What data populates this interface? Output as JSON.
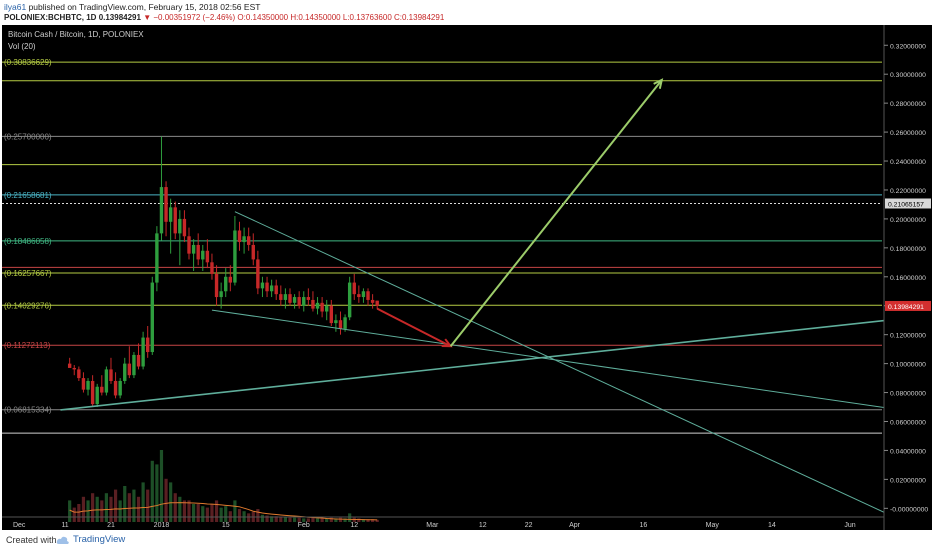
{
  "header": {
    "user": "ilya61",
    "published": " published on TradingView.com, February 15, 2018 02:56 EST",
    "symbol": "POLONIEX:BCHBTC, 1D",
    "price": "0.13984291",
    "change_arrow": "▼",
    "change": "−0.00351972 (−2.46%)",
    "ohlc": "O:0.14350000 H:0.14350000 L:0.13763600 C:0.13984291"
  },
  "footer": {
    "created": "Created with",
    "brand": "TradingView"
  },
  "colors": {
    "up": "#2e9e3e",
    "down": "#c62828",
    "bg": "#000000",
    "fib_yellow_green": "#b5cc44",
    "fib_gray": "#8a8a8a",
    "fib_teal": "#4ab3c4",
    "fib_green": "#40b884",
    "fib_red": "#c64545",
    "arrow_green": "#9ccc6a",
    "arrow_red": "#c62828",
    "trendline": "#5fae9b"
  },
  "chart_data": {
    "type": "candlestick",
    "title": "Bitcoin Cash / Bitcoin, 1D, POLONIEX",
    "indicator": "Vol (20)",
    "y_range": [
      -0.006,
      0.334
    ],
    "y_ticks": [
      "0.32000000",
      "0.30000000",
      "0.28000000",
      "0.26000000",
      "0.24000000",
      "0.22000000",
      "0.20000000",
      "0.18000000",
      "0.16000000",
      "0.14000000",
      "0.12000000",
      "0.10000000",
      "0.08000000",
      "0.06000000",
      "0.04000000",
      "0.02000000",
      "-0.00000000"
    ],
    "x_ticks": [
      "Dec",
      "11",
      "21",
      "2018",
      "15",
      "Feb",
      "12",
      "Mar",
      "12",
      "22",
      "Apr",
      "16",
      "May",
      "14",
      "Jun"
    ],
    "x_tick_days": [
      0,
      10,
      20,
      31,
      45,
      62,
      73,
      90,
      101,
      111,
      121,
      136,
      151,
      164,
      181
    ],
    "last_price_label": "0.13984291",
    "marker_label": "0.21065157",
    "fib_levels": [
      {
        "label": "0.30836629",
        "value": 0.30836629,
        "color": "#b5cc44"
      },
      {
        "label": "",
        "value": 0.2955,
        "color": "#b5cc44"
      },
      {
        "label": "0.25700000",
        "value": 0.257,
        "color": "#8a8a8a"
      },
      {
        "label": "",
        "value": 0.2375,
        "color": "#b5cc44"
      },
      {
        "label": "0.21658681",
        "value": 0.21658681,
        "color": "#4ab3c4"
      },
      {
        "label": "0.18486058",
        "value": 0.18486058,
        "color": "#40b884"
      },
      {
        "label": "",
        "value": 0.1665,
        "color": "#c64545"
      },
      {
        "label": "0.16257667",
        "value": 0.16257667,
        "color": "#b5cc44"
      },
      {
        "label": "0.14029276",
        "value": 0.14029276,
        "color": "#b5cc44"
      },
      {
        "label": "0.11272113",
        "value": 0.11272113,
        "color": "#c64545"
      },
      {
        "label": "0.06815334",
        "value": 0.06815334,
        "color": "#8a8a8a"
      },
      {
        "label": "",
        "value": 0.052,
        "color": "#cfcfcf"
      }
    ],
    "candles": [
      [
        0,
        0.1,
        0.104,
        0.098,
        0.097
      ],
      [
        1,
        0.097,
        0.099,
        0.092,
        0.096
      ],
      [
        2,
        0.096,
        0.098,
        0.088,
        0.09
      ],
      [
        3,
        0.09,
        0.094,
        0.08,
        0.082
      ],
      [
        4,
        0.082,
        0.09,
        0.078,
        0.088
      ],
      [
        5,
        0.088,
        0.092,
        0.07,
        0.072
      ],
      [
        6,
        0.072,
        0.086,
        0.07,
        0.084
      ],
      [
        7,
        0.084,
        0.092,
        0.078,
        0.08
      ],
      [
        8,
        0.08,
        0.098,
        0.078,
        0.096
      ],
      [
        9,
        0.096,
        0.104,
        0.086,
        0.088
      ],
      [
        10,
        0.088,
        0.094,
        0.076,
        0.078
      ],
      [
        11,
        0.078,
        0.09,
        0.076,
        0.088
      ],
      [
        12,
        0.088,
        0.104,
        0.086,
        0.1
      ],
      [
        13,
        0.1,
        0.112,
        0.09,
        0.092
      ],
      [
        14,
        0.092,
        0.108,
        0.09,
        0.106
      ],
      [
        15,
        0.106,
        0.114,
        0.096,
        0.098
      ],
      [
        16,
        0.098,
        0.122,
        0.096,
        0.118
      ],
      [
        17,
        0.118,
        0.126,
        0.104,
        0.108
      ],
      [
        18,
        0.108,
        0.16,
        0.106,
        0.156
      ],
      [
        19,
        0.156,
        0.195,
        0.15,
        0.19
      ],
      [
        20,
        0.19,
        0.257,
        0.185,
        0.222
      ],
      [
        21,
        0.222,
        0.226,
        0.188,
        0.198
      ],
      [
        22,
        0.198,
        0.214,
        0.176,
        0.208
      ],
      [
        23,
        0.208,
        0.212,
        0.186,
        0.19
      ],
      [
        24,
        0.19,
        0.206,
        0.168,
        0.2
      ],
      [
        25,
        0.2,
        0.206,
        0.184,
        0.188
      ],
      [
        26,
        0.188,
        0.194,
        0.172,
        0.176
      ],
      [
        27,
        0.176,
        0.186,
        0.164,
        0.182
      ],
      [
        28,
        0.182,
        0.19,
        0.168,
        0.172
      ],
      [
        29,
        0.172,
        0.182,
        0.164,
        0.178
      ],
      [
        30,
        0.178,
        0.186,
        0.166,
        0.17
      ],
      [
        31,
        0.17,
        0.176,
        0.158,
        0.162
      ],
      [
        32,
        0.162,
        0.168,
        0.14,
        0.146
      ],
      [
        33,
        0.146,
        0.156,
        0.138,
        0.15
      ],
      [
        34,
        0.15,
        0.166,
        0.146,
        0.16
      ],
      [
        35,
        0.16,
        0.168,
        0.15,
        0.156
      ],
      [
        36,
        0.156,
        0.202,
        0.154,
        0.192
      ],
      [
        37,
        0.192,
        0.198,
        0.178,
        0.184
      ],
      [
        38,
        0.184,
        0.194,
        0.176,
        0.188
      ],
      [
        39,
        0.188,
        0.194,
        0.178,
        0.182
      ],
      [
        40,
        0.182,
        0.19,
        0.168,
        0.172
      ],
      [
        41,
        0.172,
        0.178,
        0.148,
        0.152
      ],
      [
        42,
        0.152,
        0.16,
        0.146,
        0.156
      ],
      [
        43,
        0.156,
        0.16,
        0.146,
        0.15
      ],
      [
        44,
        0.15,
        0.158,
        0.146,
        0.154
      ],
      [
        45,
        0.154,
        0.158,
        0.144,
        0.148
      ],
      [
        46,
        0.148,
        0.154,
        0.14,
        0.144
      ],
      [
        47,
        0.144,
        0.152,
        0.138,
        0.148
      ],
      [
        48,
        0.148,
        0.152,
        0.14,
        0.142
      ],
      [
        49,
        0.142,
        0.148,
        0.138,
        0.146
      ],
      [
        50,
        0.146,
        0.15,
        0.138,
        0.14
      ],
      [
        51,
        0.14,
        0.15,
        0.136,
        0.146
      ],
      [
        52,
        0.146,
        0.152,
        0.14,
        0.144
      ],
      [
        53,
        0.144,
        0.15,
        0.136,
        0.138
      ],
      [
        54,
        0.138,
        0.146,
        0.134,
        0.142
      ],
      [
        55,
        0.142,
        0.146,
        0.132,
        0.136
      ],
      [
        56,
        0.136,
        0.144,
        0.13,
        0.14
      ],
      [
        57,
        0.14,
        0.144,
        0.126,
        0.128
      ],
      [
        58,
        0.128,
        0.134,
        0.122,
        0.13
      ],
      [
        59,
        0.13,
        0.136,
        0.12,
        0.124
      ],
      [
        60,
        0.124,
        0.134,
        0.122,
        0.132
      ],
      [
        61,
        0.132,
        0.16,
        0.13,
        0.156
      ],
      [
        62,
        0.156,
        0.162,
        0.144,
        0.148
      ],
      [
        63,
        0.148,
        0.154,
        0.142,
        0.146
      ],
      [
        64,
        0.146,
        0.152,
        0.142,
        0.15
      ],
      [
        65,
        0.15,
        0.152,
        0.14,
        0.144
      ],
      [
        66,
        0.144,
        0.148,
        0.138,
        0.142
      ],
      [
        67,
        0.1435,
        0.1435,
        0.1376,
        0.1398
      ]
    ],
    "volumes": [
      [
        0,
        0.3,
        1
      ],
      [
        1,
        0.2,
        0
      ],
      [
        2,
        0.25,
        0
      ],
      [
        3,
        0.35,
        0
      ],
      [
        4,
        0.3,
        1
      ],
      [
        5,
        0.4,
        0
      ],
      [
        6,
        0.35,
        1
      ],
      [
        7,
        0.3,
        0
      ],
      [
        8,
        0.4,
        1
      ],
      [
        9,
        0.35,
        0
      ],
      [
        10,
        0.45,
        0
      ],
      [
        11,
        0.3,
        1
      ],
      [
        12,
        0.5,
        1
      ],
      [
        13,
        0.4,
        0
      ],
      [
        14,
        0.45,
        1
      ],
      [
        15,
        0.35,
        0
      ],
      [
        16,
        0.55,
        1
      ],
      [
        17,
        0.45,
        0
      ],
      [
        18,
        0.85,
        1
      ],
      [
        19,
        0.8,
        1
      ],
      [
        20,
        1.0,
        1
      ],
      [
        21,
        0.6,
        0
      ],
      [
        22,
        0.55,
        1
      ],
      [
        23,
        0.4,
        0
      ],
      [
        24,
        0.35,
        1
      ],
      [
        25,
        0.3,
        0
      ],
      [
        26,
        0.3,
        0
      ],
      [
        27,
        0.25,
        1
      ],
      [
        28,
        0.25,
        0
      ],
      [
        29,
        0.22,
        1
      ],
      [
        30,
        0.2,
        0
      ],
      [
        31,
        0.25,
        0
      ],
      [
        32,
        0.3,
        0
      ],
      [
        33,
        0.2,
        1
      ],
      [
        34,
        0.22,
        1
      ],
      [
        35,
        0.15,
        0
      ],
      [
        36,
        0.3,
        1
      ],
      [
        37,
        0.18,
        0
      ],
      [
        38,
        0.15,
        1
      ],
      [
        39,
        0.12,
        0
      ],
      [
        40,
        0.14,
        0
      ],
      [
        41,
        0.18,
        0
      ],
      [
        42,
        0.1,
        1
      ],
      [
        43,
        0.09,
        0
      ],
      [
        44,
        0.08,
        1
      ],
      [
        45,
        0.08,
        0
      ],
      [
        46,
        0.07,
        0
      ],
      [
        47,
        0.07,
        1
      ],
      [
        48,
        0.06,
        0
      ],
      [
        49,
        0.06,
        1
      ],
      [
        50,
        0.06,
        0
      ],
      [
        51,
        0.05,
        1
      ],
      [
        52,
        0.05,
        0
      ],
      [
        53,
        0.06,
        0
      ],
      [
        54,
        0.05,
        1
      ],
      [
        55,
        0.05,
        0
      ],
      [
        56,
        0.05,
        1
      ],
      [
        57,
        0.06,
        0
      ],
      [
        58,
        0.05,
        1
      ],
      [
        59,
        0.06,
        0
      ],
      [
        60,
        0.05,
        1
      ],
      [
        61,
        0.12,
        1
      ],
      [
        62,
        0.06,
        0
      ],
      [
        63,
        0.05,
        0
      ],
      [
        64,
        0.04,
        1
      ],
      [
        65,
        0.04,
        0
      ],
      [
        66,
        0.04,
        0
      ],
      [
        67,
        0.03,
        0
      ]
    ],
    "drawings": {
      "upper_trendline": [
        [
          36,
          0.205
        ],
        [
          181,
          -0.008
        ]
      ],
      "lower_channel": [
        [
          31,
          0.137
        ],
        [
          181,
          0.068
        ]
      ],
      "long_support": [
        [
          -2,
          0.068
        ],
        [
          181,
          0.131
        ]
      ],
      "red_arrow": [
        [
          67,
          0.138
        ],
        [
          83,
          0.112
        ]
      ],
      "green_arrow": [
        [
          83,
          0.112
        ],
        [
          129,
          0.296
        ]
      ]
    }
  }
}
